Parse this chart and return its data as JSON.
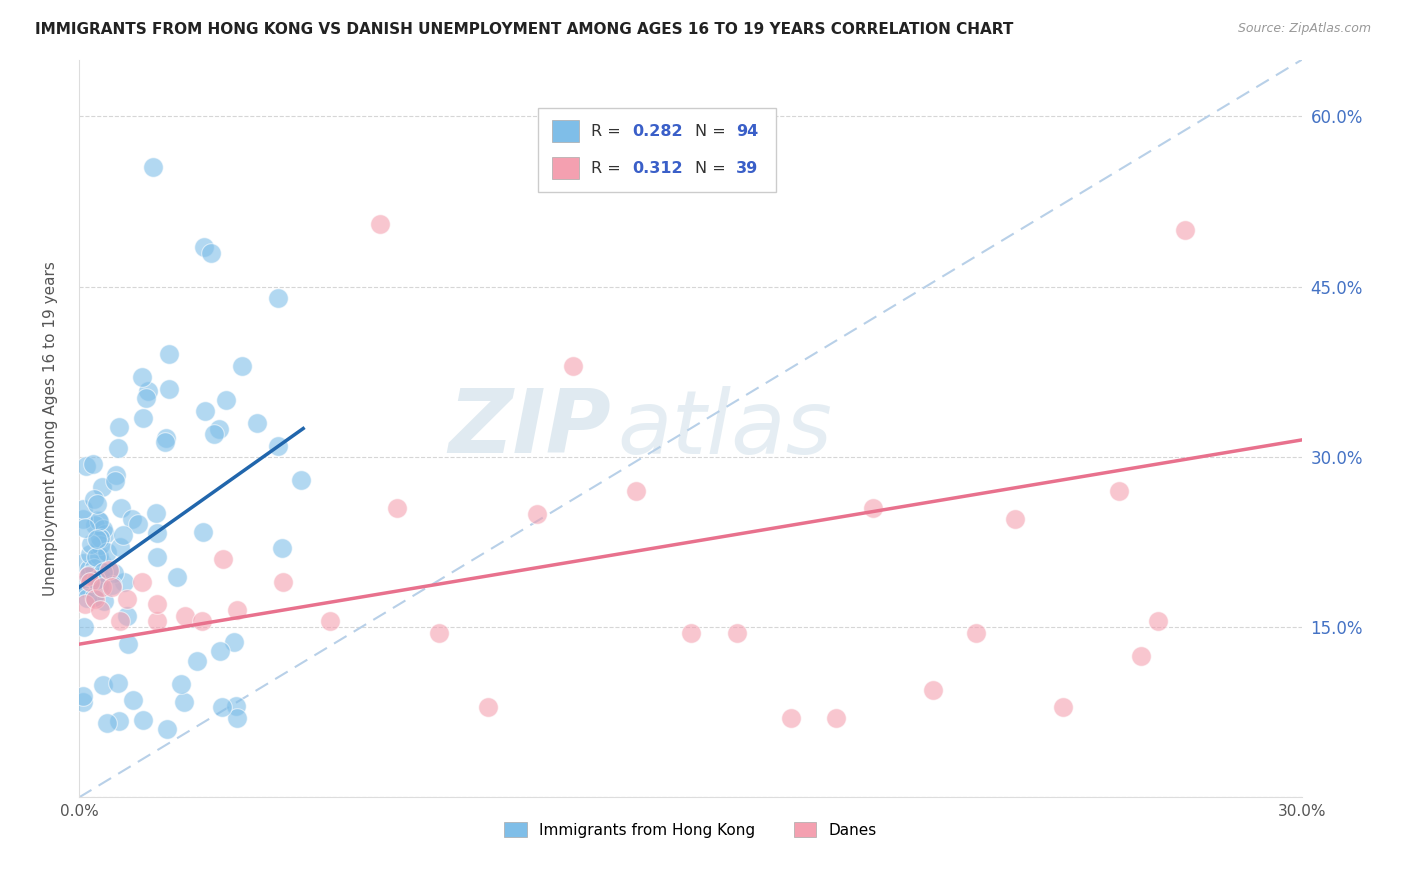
{
  "title": "IMMIGRANTS FROM HONG KONG VS DANISH UNEMPLOYMENT AMONG AGES 16 TO 19 YEARS CORRELATION CHART",
  "source": "Source: ZipAtlas.com",
  "ylabel": "Unemployment Among Ages 16 to 19 years",
  "xlim": [
    0.0,
    0.3
  ],
  "ylim": [
    0.0,
    0.65
  ],
  "xtick_positions": [
    0.0,
    0.05,
    0.1,
    0.15,
    0.2,
    0.25,
    0.3
  ],
  "xtick_labels": [
    "0.0%",
    "",
    "",
    "",
    "",
    "",
    "30.0%"
  ],
  "yticks_right": [
    0.15,
    0.3,
    0.45,
    0.6
  ],
  "ytick_right_labels": [
    "15.0%",
    "30.0%",
    "45.0%",
    "60.0%"
  ],
  "legend_label1": "Immigrants from Hong Kong",
  "legend_label2": "Danes",
  "color_blue": "#7fbee8",
  "color_pink": "#f4a0b0",
  "color_blue_line": "#2166ac",
  "color_pink_line": "#e8718d",
  "color_blue_dashed": "#b8d0e8",
  "color_legend_text_dark": "#333333",
  "color_legend_val": "#3a5fc8",
  "color_right_axis": "#4472c4",
  "watermark_zip": "ZIP",
  "watermark_atlas": "atlas",
  "r1": "0.282",
  "n1": "94",
  "r2": "0.312",
  "n2": "39",
  "blue_line_x": [
    0.0,
    0.055
  ],
  "blue_line_y": [
    0.185,
    0.325
  ],
  "pink_line_x": [
    0.0,
    0.3
  ],
  "pink_line_y": [
    0.135,
    0.315
  ],
  "dashed_line_x": [
    0.0,
    0.3
  ],
  "dashed_line_y": [
    0.0,
    0.65
  ]
}
